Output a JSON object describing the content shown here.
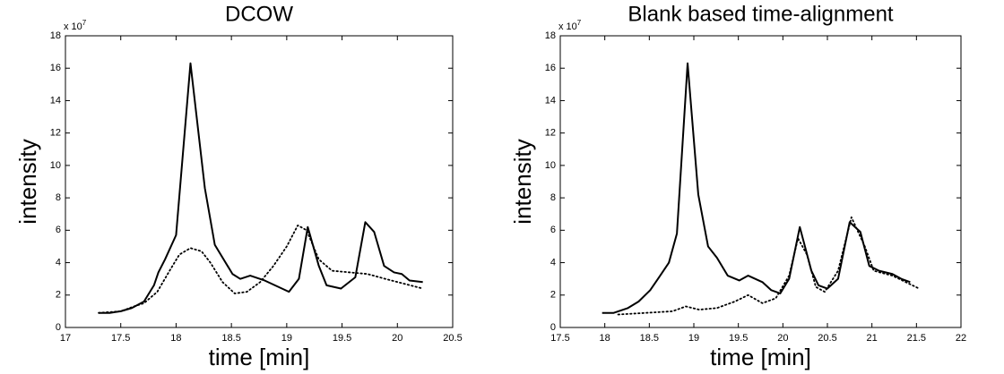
{
  "chart_data": [
    {
      "type": "line",
      "title": "DCOW",
      "xlabel": "time [min]",
      "ylabel": "intensity",
      "y_multiplier": "x 10",
      "y_multiplier_exponent": "7",
      "xlim": [
        17,
        20.5
      ],
      "xticks": [
        17,
        17.5,
        18,
        18.5,
        19,
        19.5,
        20,
        20.5
      ],
      "ylim": [
        0,
        18
      ],
      "yticks": [
        0,
        2,
        4,
        6,
        8,
        10,
        12,
        14,
        16,
        18
      ],
      "series": [
        {
          "color": "#000000",
          "dash": "solid",
          "x": [
            17.3,
            17.4,
            17.5,
            17.6,
            17.71,
            17.8,
            17.84,
            17.9,
            18.0,
            18.13,
            18.26,
            18.35,
            18.51,
            18.58,
            18.67,
            18.8,
            19.02,
            19.11,
            19.19,
            19.29,
            19.36,
            19.49,
            19.62,
            19.71,
            19.79,
            19.88,
            19.97,
            20.04,
            20.11,
            20.23
          ],
          "values": [
            0.9,
            0.9,
            1.0,
            1.2,
            1.6,
            2.6,
            3.4,
            4.2,
            5.7,
            16.3,
            8.6,
            5.1,
            3.3,
            3.0,
            3.2,
            2.9,
            2.2,
            3.0,
            6.2,
            3.8,
            2.6,
            2.4,
            3.1,
            6.5,
            5.9,
            3.8,
            3.4,
            3.3,
            2.9,
            2.8
          ]
        },
        {
          "color": "#000000",
          "dash": "dotted",
          "x": [
            17.3,
            17.5,
            17.62,
            17.71,
            17.83,
            17.95,
            18.03,
            18.13,
            18.23,
            18.31,
            18.42,
            18.53,
            18.64,
            18.76,
            18.88,
            19.0,
            19.1,
            19.18,
            19.29,
            19.41,
            19.57,
            19.73,
            19.89,
            20.06,
            20.23
          ],
          "values": [
            0.9,
            1.0,
            1.3,
            1.5,
            2.2,
            3.6,
            4.5,
            4.9,
            4.7,
            4.0,
            2.8,
            2.1,
            2.2,
            2.8,
            3.8,
            5.0,
            6.3,
            6.0,
            4.2,
            3.5,
            3.4,
            3.3,
            3.0,
            2.7,
            2.4
          ]
        }
      ]
    },
    {
      "type": "line",
      "title": "Blank based time-alignment",
      "xlabel": "time [min]",
      "ylabel": "intensity",
      "y_multiplier": "x 10",
      "y_multiplier_exponent": "7",
      "xlim": [
        17.5,
        22
      ],
      "xticks": [
        17.5,
        18,
        18.5,
        19,
        19.5,
        20,
        20.5,
        21,
        21.5,
        22
      ],
      "ylim": [
        0,
        18
      ],
      "yticks": [
        0,
        2,
        4,
        6,
        8,
        10,
        12,
        14,
        16,
        18
      ],
      "series": [
        {
          "color": "#000000",
          "dash": "solid",
          "x": [
            17.97,
            18.1,
            18.26,
            18.38,
            18.51,
            18.61,
            18.72,
            18.81,
            18.93,
            19.05,
            19.16,
            19.26,
            19.38,
            19.51,
            19.61,
            19.77,
            19.87,
            19.97,
            20.07,
            20.19,
            20.32,
            20.4,
            20.5,
            20.62,
            20.75,
            20.87,
            20.97,
            21.08,
            21.23,
            21.33,
            21.43
          ],
          "values": [
            0.9,
            0.9,
            1.2,
            1.6,
            2.3,
            3.1,
            4.0,
            5.8,
            16.3,
            8.2,
            5.0,
            4.3,
            3.2,
            2.9,
            3.2,
            2.8,
            2.3,
            2.1,
            3.0,
            6.2,
            3.5,
            2.6,
            2.4,
            3.0,
            6.5,
            5.9,
            3.8,
            3.5,
            3.3,
            3.0,
            2.8
          ]
        },
        {
          "color": "#000000",
          "dash": "dotted",
          "x": [
            18.15,
            18.46,
            18.76,
            18.91,
            19.06,
            19.26,
            19.46,
            19.61,
            19.77,
            19.92,
            20.07,
            20.17,
            20.27,
            20.37,
            20.47,
            20.62,
            20.77,
            20.92,
            21.02,
            21.23,
            21.38,
            21.53
          ],
          "values": [
            0.8,
            0.9,
            1.0,
            1.3,
            1.1,
            1.2,
            1.6,
            2.0,
            1.5,
            1.8,
            3.2,
            5.5,
            4.5,
            2.5,
            2.2,
            3.5,
            6.8,
            5.0,
            3.5,
            3.2,
            2.8,
            2.4
          ]
        }
      ]
    }
  ]
}
